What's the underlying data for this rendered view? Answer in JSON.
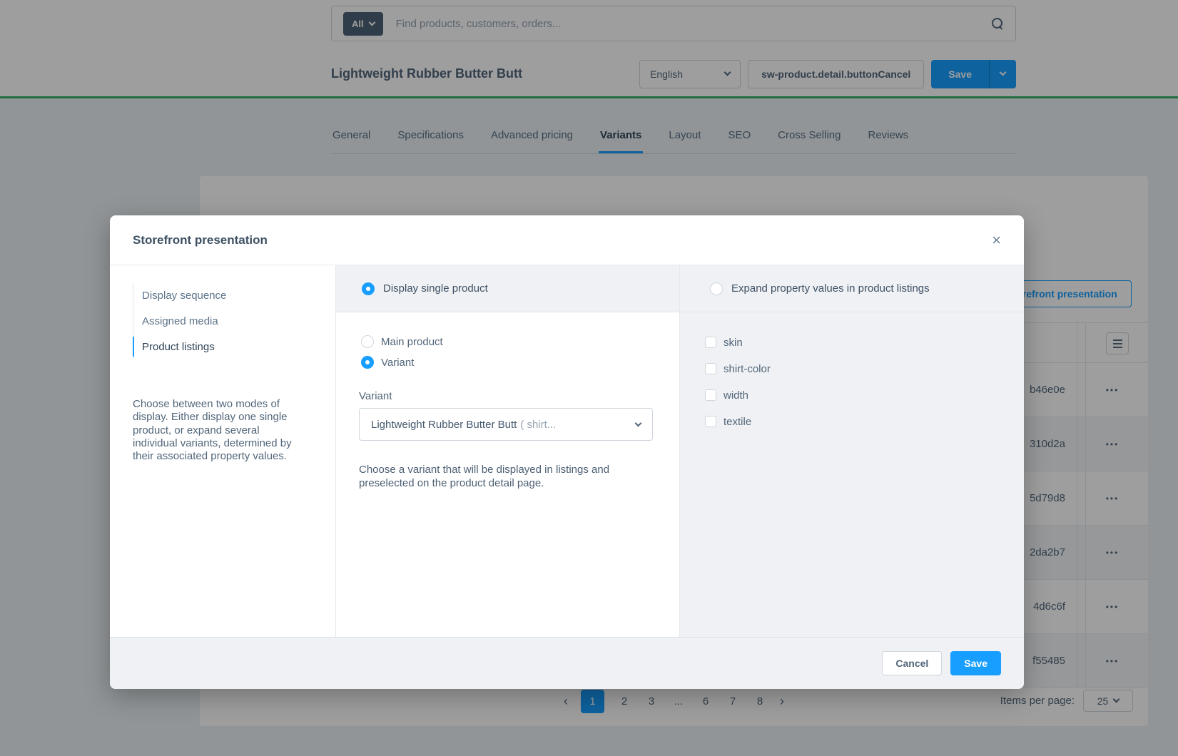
{
  "search": {
    "scope_label": "All",
    "placeholder": "Find products, customers, orders..."
  },
  "smartbar": {
    "title": "Lightweight Rubber Butter Butt",
    "language": "English",
    "cancel_label": "sw-product.detail.buttonCancel",
    "save_label": "Save"
  },
  "tabs": [
    {
      "label": "General"
    },
    {
      "label": "Specifications"
    },
    {
      "label": "Advanced pricing"
    },
    {
      "label": "Variants",
      "active": true
    },
    {
      "label": "Layout"
    },
    {
      "label": "SEO"
    },
    {
      "label": "Cross Selling"
    },
    {
      "label": "Reviews"
    }
  ],
  "background": {
    "storefront_button_label": "Storefront presentation",
    "context_menu_glyph": "•••",
    "table_rows": [
      {
        "id": "b46e0e"
      },
      {
        "id": "310d2a"
      },
      {
        "id": "5d79d8"
      },
      {
        "id": "2da2b7"
      },
      {
        "id": "4d6c6f"
      },
      {
        "id": "f55485"
      }
    ],
    "pagination": {
      "prev": "‹",
      "next": "›",
      "pages": [
        "1",
        "2",
        "3",
        "...",
        "6",
        "7",
        "8"
      ],
      "active_page": "1"
    },
    "items_per_page_label": "Items per page:",
    "items_per_page_value": "25"
  },
  "modal": {
    "title": "Storefront presentation",
    "close_glyph": "×",
    "nav": [
      {
        "label": "Display sequence"
      },
      {
        "label": "Assigned media"
      },
      {
        "label": "Product listings",
        "active": true
      }
    ],
    "description": "Choose between two modes of display. Either display one single product, or expand several individual variants, determined by their associated property values.",
    "single_mode": {
      "header_label": "Display single product",
      "main_product_label": "Main product",
      "variant_option_label": "Variant",
      "variant_field_label": "Variant",
      "variant_value": "Lightweight Rubber Butter Butt",
      "variant_value_suffix": "( shirt...",
      "help": "Choose a variant that will be displayed in listings and preselected on the product detail page."
    },
    "expand_mode": {
      "header_label": "Expand property values in product listings",
      "properties": [
        {
          "label": "skin"
        },
        {
          "label": "shirt-color"
        },
        {
          "label": "width"
        },
        {
          "label": "textile"
        }
      ]
    },
    "footer": {
      "cancel_label": "Cancel",
      "save_label": "Save"
    }
  },
  "colors": {
    "accent": "#189eff",
    "smartbar_line": "#39b269",
    "text": "#52667a"
  }
}
